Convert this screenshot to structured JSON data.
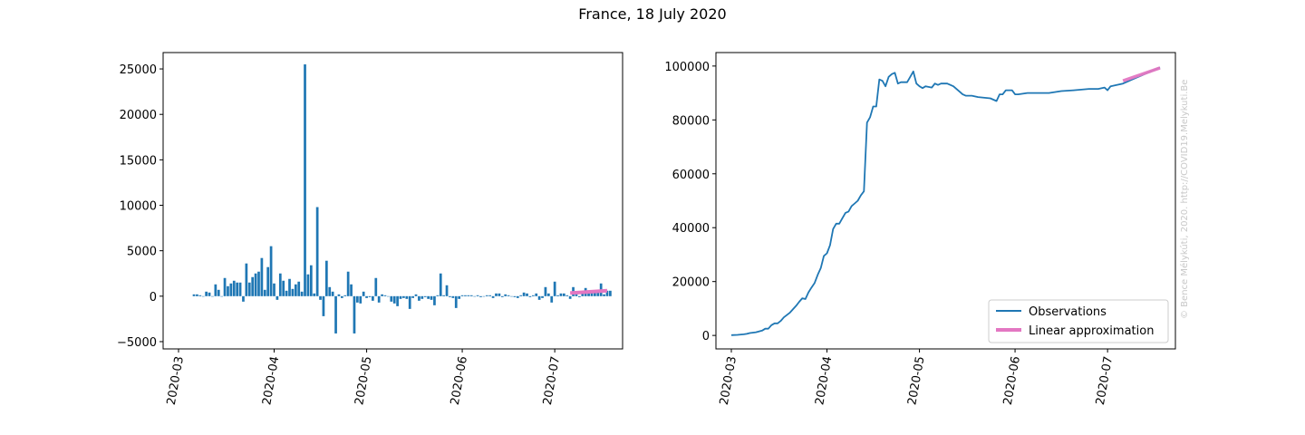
{
  "figure_title": "France, 18 July 2020",
  "watermark": "© Bence Mélykúti, 2020. http://COVID19.Melykuti.Be",
  "colors": {
    "bars": "#1f77b4",
    "line": "#1f77b4",
    "approx": "#e377c2",
    "watermark": "#c8c8c8"
  },
  "chart_data": [
    {
      "type": "bar",
      "title": "",
      "xlabel": "",
      "ylabel": "",
      "x_ticks": [
        "2020-03",
        "2020-04",
        "2020-05",
        "2020-06",
        "2020-07"
      ],
      "x_tick_dates": [
        "2020-03-01",
        "2020-04-01",
        "2020-05-01",
        "2020-06-01",
        "2020-07-01"
      ],
      "xlim": [
        "2020-02-25",
        "2020-07-23"
      ],
      "ylim": [
        -5800,
        26800
      ],
      "y_ticks": [
        -5000,
        0,
        5000,
        10000,
        15000,
        20000,
        25000
      ],
      "y_tick_labels": [
        "−5000",
        "0",
        "5000",
        "10000",
        "15000",
        "20000",
        "25000"
      ],
      "start_date": "2020-03-06",
      "values": [
        200,
        200,
        100,
        0,
        500,
        400,
        0,
        1300,
        700,
        0,
        2000,
        1100,
        1400,
        1700,
        1500,
        1500,
        -600,
        3600,
        1500,
        2100,
        2500,
        2700,
        4200,
        700,
        3200,
        5500,
        1400,
        -400,
        2500,
        1700,
        600,
        1900,
        800,
        1300,
        1600,
        500,
        25500,
        2400,
        3400,
        300,
        9800,
        -400,
        -2200,
        3900,
        1000,
        500,
        -4100,
        200,
        -200,
        100,
        2700,
        1300,
        -4100,
        -700,
        -800,
        500,
        -200,
        -100,
        -500,
        2000,
        -700,
        200,
        100,
        0,
        -600,
        -800,
        -1100,
        -300,
        -200,
        -300,
        -1400,
        -200,
        200,
        -500,
        -300,
        -100,
        -300,
        -400,
        -1000,
        100,
        2500,
        100,
        1200,
        -100,
        -200,
        -1300,
        -300,
        100,
        100,
        100,
        100,
        0,
        100,
        -100,
        0,
        100,
        100,
        -200,
        300,
        300,
        -100,
        200,
        100,
        0,
        -100,
        -200,
        100,
        400,
        300,
        -100,
        100,
        300,
        -400,
        -200,
        1000,
        300,
        -700,
        1600,
        100,
        300,
        300,
        100,
        -300,
        1000,
        300,
        -100,
        400,
        900,
        300,
        500,
        400,
        400,
        1400,
        200,
        600,
        600
      ],
      "series": [
        {
          "name": "Linear approximation",
          "x": [
            "2020-07-06",
            "2020-07-18"
          ],
          "y": [
            350,
            600
          ]
        }
      ]
    },
    {
      "type": "line",
      "title": "",
      "xlabel": "",
      "ylabel": "",
      "x_ticks": [
        "2020-03",
        "2020-04",
        "2020-05",
        "2020-06",
        "2020-07"
      ],
      "x_tick_dates": [
        "2020-03-01",
        "2020-04-01",
        "2020-05-01",
        "2020-06-01",
        "2020-07-01"
      ],
      "xlim": [
        "2020-02-25",
        "2020-07-23"
      ],
      "ylim": [
        -5000,
        105000
      ],
      "y_ticks": [
        0,
        20000,
        40000,
        60000,
        80000,
        100000
      ],
      "y_tick_labels": [
        "0",
        "20000",
        "40000",
        "60000",
        "80000",
        "100000"
      ],
      "legend": {
        "position": "lower-right",
        "entries": [
          "Observations",
          "Linear approximation"
        ]
      },
      "series": [
        {
          "name": "Observations",
          "points": [
            [
              "2020-03-01",
              100
            ],
            [
              "2020-03-03",
              200
            ],
            [
              "2020-03-05",
              400
            ],
            [
              "2020-03-06",
              600
            ],
            [
              "2020-03-07",
              900
            ],
            [
              "2020-03-09",
              1200
            ],
            [
              "2020-03-11",
              1800
            ],
            [
              "2020-03-12",
              2500
            ],
            [
              "2020-03-13",
              2500
            ],
            [
              "2020-03-14",
              3800
            ],
            [
              "2020-03-15",
              4500
            ],
            [
              "2020-03-16",
              4500
            ],
            [
              "2020-03-17",
              5400
            ],
            [
              "2020-03-18",
              6700
            ],
            [
              "2020-03-20",
              8500
            ],
            [
              "2020-03-22",
              11000
            ],
            [
              "2020-03-23",
              12500
            ],
            [
              "2020-03-24",
              13800
            ],
            [
              "2020-03-25",
              13500
            ],
            [
              "2020-03-26",
              16000
            ],
            [
              "2020-03-27",
              17800
            ],
            [
              "2020-03-28",
              19500
            ],
            [
              "2020-03-29",
              22500
            ],
            [
              "2020-03-30",
              25000
            ],
            [
              "2020-03-31",
              29500
            ],
            [
              "2020-04-01",
              30500
            ],
            [
              "2020-04-02",
              33500
            ],
            [
              "2020-04-03",
              39500
            ],
            [
              "2020-04-04",
              41500
            ],
            [
              "2020-04-05",
              41500
            ],
            [
              "2020-04-06",
              43500
            ],
            [
              "2020-04-07",
              45500
            ],
            [
              "2020-04-08",
              46000
            ],
            [
              "2020-04-09",
              48000
            ],
            [
              "2020-04-10",
              49000
            ],
            [
              "2020-04-11",
              50000
            ],
            [
              "2020-04-12",
              52000
            ],
            [
              "2020-04-13",
              53500
            ],
            [
              "2020-04-14",
              79000
            ],
            [
              "2020-04-15",
              81000
            ],
            [
              "2020-04-16",
              85000
            ],
            [
              "2020-04-17",
              85000
            ],
            [
              "2020-04-18",
              95000
            ],
            [
              "2020-04-19",
              94500
            ],
            [
              "2020-04-20",
              92500
            ],
            [
              "2020-04-21",
              96000
            ],
            [
              "2020-04-22",
              97000
            ],
            [
              "2020-04-23",
              97500
            ],
            [
              "2020-04-24",
              93500
            ],
            [
              "2020-04-25",
              94000
            ],
            [
              "2020-04-26",
              94000
            ],
            [
              "2020-04-27",
              94000
            ],
            [
              "2020-04-28",
              96000
            ],
            [
              "2020-04-29",
              98000
            ],
            [
              "2020-04-30",
              93500
            ],
            [
              "2020-05-01",
              92500
            ],
            [
              "2020-05-02",
              91800
            ],
            [
              "2020-05-03",
              92500
            ],
            [
              "2020-05-05",
              92000
            ],
            [
              "2020-05-06",
              93500
            ],
            [
              "2020-05-07",
              93000
            ],
            [
              "2020-05-08",
              93500
            ],
            [
              "2020-05-10",
              93500
            ],
            [
              "2020-05-12",
              92500
            ],
            [
              "2020-05-14",
              90500
            ],
            [
              "2020-05-15",
              89500
            ],
            [
              "2020-05-16",
              89000
            ],
            [
              "2020-05-18",
              89000
            ],
            [
              "2020-05-20",
              88500
            ],
            [
              "2020-05-24",
              88000
            ],
            [
              "2020-05-25",
              87500
            ],
            [
              "2020-05-26",
              87000
            ],
            [
              "2020-05-27",
              89500
            ],
            [
              "2020-05-28",
              89500
            ],
            [
              "2020-05-29",
              91000
            ],
            [
              "2020-05-31",
              91000
            ],
            [
              "2020-06-01",
              89500
            ],
            [
              "2020-06-02",
              89500
            ],
            [
              "2020-06-05",
              90000
            ],
            [
              "2020-06-08",
              90000
            ],
            [
              "2020-06-12",
              90000
            ],
            [
              "2020-06-16",
              90700
            ],
            [
              "2020-06-20",
              91000
            ],
            [
              "2020-06-25",
              91500
            ],
            [
              "2020-06-28",
              91500
            ],
            [
              "2020-06-30",
              92000
            ],
            [
              "2020-07-01",
              91000
            ],
            [
              "2020-07-02",
              92500
            ],
            [
              "2020-07-04",
              93000
            ],
            [
              "2020-07-06",
              93500
            ],
            [
              "2020-07-08",
              94500
            ],
            [
              "2020-07-10",
              95500
            ],
            [
              "2020-07-12",
              96500
            ],
            [
              "2020-07-14",
              97500
            ],
            [
              "2020-07-16",
              98500
            ],
            [
              "2020-07-18",
              99500
            ]
          ]
        },
        {
          "name": "Linear approximation",
          "x": [
            "2020-07-06",
            "2020-07-18"
          ],
          "y": [
            94500,
            99300
          ]
        }
      ]
    }
  ]
}
